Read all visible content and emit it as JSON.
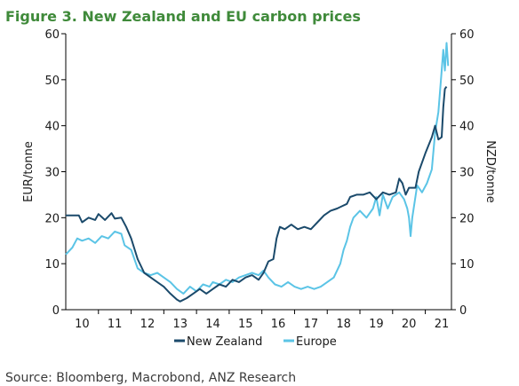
{
  "chart_data": {
    "type": "line",
    "title": "Figure 3. New Zealand and EU carbon prices",
    "ylabel_left": "EUR/tonne",
    "ylabel_right": "NZD/tonne",
    "ylim": [
      0,
      60
    ],
    "xlim": [
      9.5,
      21.3
    ],
    "y_ticks": [
      "0",
      "10",
      "20",
      "30",
      "40",
      "50",
      "60"
    ],
    "x_ticks": [
      "10",
      "11",
      "12",
      "13",
      "14",
      "15",
      "16",
      "17",
      "18",
      "19",
      "20",
      "21"
    ],
    "legend_position": "bottom",
    "grid": false,
    "series": [
      {
        "name": "New Zealand",
        "color": "#1b4a6b",
        "points": [
          [
            9.5,
            20.5
          ],
          [
            9.9,
            20.5
          ],
          [
            10.0,
            19.0
          ],
          [
            10.2,
            20.0
          ],
          [
            10.4,
            19.5
          ],
          [
            10.5,
            20.8
          ],
          [
            10.7,
            19.5
          ],
          [
            10.9,
            21.0
          ],
          [
            11.0,
            19.8
          ],
          [
            11.2,
            20.0
          ],
          [
            11.35,
            18.0
          ],
          [
            11.5,
            15.5
          ],
          [
            11.7,
            11.0
          ],
          [
            11.9,
            8.0
          ],
          [
            12.1,
            7.0
          ],
          [
            12.3,
            6.0
          ],
          [
            12.5,
            5.0
          ],
          [
            12.7,
            3.5
          ],
          [
            12.9,
            2.2
          ],
          [
            13.0,
            1.8
          ],
          [
            13.2,
            2.5
          ],
          [
            13.4,
            3.5
          ],
          [
            13.6,
            4.5
          ],
          [
            13.8,
            3.5
          ],
          [
            14.0,
            4.5
          ],
          [
            14.2,
            5.5
          ],
          [
            14.4,
            5.0
          ],
          [
            14.6,
            6.5
          ],
          [
            14.8,
            6.0
          ],
          [
            15.0,
            7.0
          ],
          [
            15.2,
            7.5
          ],
          [
            15.4,
            6.5
          ],
          [
            15.55,
            8.0
          ],
          [
            15.7,
            10.5
          ],
          [
            15.85,
            11.0
          ],
          [
            15.95,
            15.5
          ],
          [
            16.05,
            18.0
          ],
          [
            16.2,
            17.5
          ],
          [
            16.4,
            18.5
          ],
          [
            16.6,
            17.5
          ],
          [
            16.8,
            18.0
          ],
          [
            17.0,
            17.5
          ],
          [
            17.2,
            19.0
          ],
          [
            17.4,
            20.5
          ],
          [
            17.6,
            21.5
          ],
          [
            17.8,
            22.0
          ],
          [
            17.95,
            22.5
          ],
          [
            18.1,
            23.0
          ],
          [
            18.2,
            24.5
          ],
          [
            18.4,
            25.0
          ],
          [
            18.6,
            25.0
          ],
          [
            18.8,
            25.5
          ],
          [
            19.0,
            24.0
          ],
          [
            19.2,
            25.5
          ],
          [
            19.4,
            25.0
          ],
          [
            19.6,
            25.5
          ],
          [
            19.7,
            28.5
          ],
          [
            19.8,
            27.5
          ],
          [
            19.9,
            25.0
          ],
          [
            20.0,
            26.5
          ],
          [
            20.2,
            26.5
          ],
          [
            20.3,
            30.0
          ],
          [
            20.5,
            34.0
          ],
          [
            20.7,
            37.5
          ],
          [
            20.8,
            40.0
          ],
          [
            20.9,
            37.0
          ],
          [
            21.0,
            37.5
          ],
          [
            21.05,
            44.0
          ],
          [
            21.1,
            48.0
          ],
          [
            21.15,
            48.5
          ]
        ]
      },
      {
        "name": "Europe",
        "color": "#5bc4e6",
        "points": [
          [
            9.5,
            12.0
          ],
          [
            9.7,
            13.5
          ],
          [
            9.85,
            15.5
          ],
          [
            10.0,
            15.0
          ],
          [
            10.2,
            15.5
          ],
          [
            10.4,
            14.5
          ],
          [
            10.6,
            16.0
          ],
          [
            10.8,
            15.5
          ],
          [
            11.0,
            17.0
          ],
          [
            11.2,
            16.5
          ],
          [
            11.3,
            14.0
          ],
          [
            11.5,
            13.0
          ],
          [
            11.7,
            9.0
          ],
          [
            11.9,
            8.0
          ],
          [
            12.1,
            7.5
          ],
          [
            12.3,
            8.0
          ],
          [
            12.5,
            7.0
          ],
          [
            12.7,
            6.0
          ],
          [
            12.9,
            4.5
          ],
          [
            13.1,
            3.5
          ],
          [
            13.3,
            5.0
          ],
          [
            13.5,
            4.0
          ],
          [
            13.7,
            5.5
          ],
          [
            13.9,
            5.0
          ],
          [
            14.0,
            6.0
          ],
          [
            14.2,
            5.5
          ],
          [
            14.4,
            6.5
          ],
          [
            14.6,
            6.0
          ],
          [
            14.8,
            7.0
          ],
          [
            15.0,
            7.5
          ],
          [
            15.2,
            8.0
          ],
          [
            15.4,
            7.5
          ],
          [
            15.55,
            8.5
          ],
          [
            15.7,
            7.0
          ],
          [
            15.9,
            5.5
          ],
          [
            16.1,
            5.0
          ],
          [
            16.3,
            6.0
          ],
          [
            16.5,
            5.0
          ],
          [
            16.7,
            4.5
          ],
          [
            16.9,
            5.0
          ],
          [
            17.1,
            4.5
          ],
          [
            17.3,
            5.0
          ],
          [
            17.5,
            6.0
          ],
          [
            17.7,
            7.0
          ],
          [
            17.9,
            10.0
          ],
          [
            18.0,
            13.0
          ],
          [
            18.1,
            15.0
          ],
          [
            18.2,
            18.0
          ],
          [
            18.3,
            20.0
          ],
          [
            18.5,
            21.5
          ],
          [
            18.7,
            20.0
          ],
          [
            18.9,
            22.0
          ],
          [
            19.0,
            24.5
          ],
          [
            19.1,
            20.5
          ],
          [
            19.2,
            25.0
          ],
          [
            19.35,
            22.0
          ],
          [
            19.5,
            24.5
          ],
          [
            19.7,
            25.5
          ],
          [
            19.85,
            24.0
          ],
          [
            19.95,
            22.0
          ],
          [
            20.0,
            20.0
          ],
          [
            20.05,
            16.0
          ],
          [
            20.1,
            20.0
          ],
          [
            20.25,
            27.0
          ],
          [
            20.4,
            25.5
          ],
          [
            20.55,
            27.5
          ],
          [
            20.7,
            30.5
          ],
          [
            20.8,
            38.5
          ],
          [
            20.9,
            43.0
          ],
          [
            21.0,
            52.0
          ],
          [
            21.05,
            56.5
          ],
          [
            21.1,
            52.0
          ],
          [
            21.15,
            58.0
          ],
          [
            21.2,
            53.0
          ]
        ]
      }
    ],
    "source": "Source: Bloomberg, Macrobond, ANZ Research"
  }
}
